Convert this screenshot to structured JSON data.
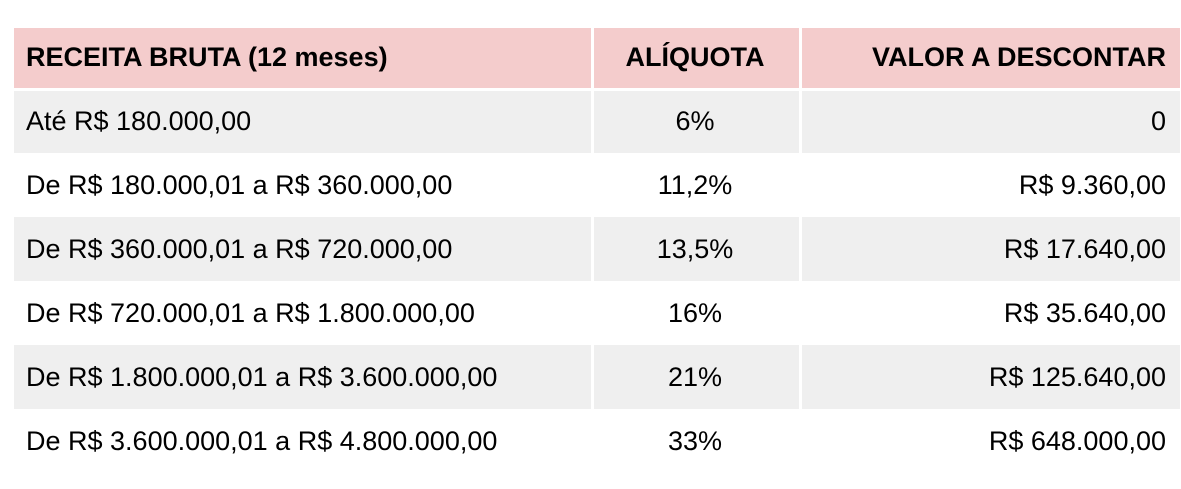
{
  "table": {
    "headers": {
      "receita": "RECEITA BRUTA (12 meses)",
      "aliquota": "ALÍQUOTA",
      "valor": "VALOR A DESCONTAR"
    },
    "rows": [
      {
        "receita": "Até R$ 180.000,00",
        "aliquota": "6%",
        "valor": "0"
      },
      {
        "receita": "De R$ 180.000,01 a R$ 360.000,00",
        "aliquota": "11,2%",
        "valor": "R$ 9.360,00"
      },
      {
        "receita": "De R$ 360.000,01 a R$ 720.000,00",
        "aliquota": "13,5%",
        "valor": "R$ 17.640,00"
      },
      {
        "receita": "De R$ 720.000,01 a R$ 1.800.000,00",
        "aliquota": "16%",
        "valor": "R$ 35.640,00"
      },
      {
        "receita": "De R$ 1.800.000,01 a R$ 3.600.000,00",
        "aliquota": "21%",
        "valor": "R$ 125.640,00"
      },
      {
        "receita": "De R$ 3.600.000,01 a R$ 4.800.000,00",
        "aliquota": "33%",
        "valor": "R$ 648.000,00"
      }
    ]
  },
  "colors": {
    "header_background": "#f4cccc",
    "striped_row_background": "#efefef",
    "plain_row_background": "#ffffff"
  }
}
